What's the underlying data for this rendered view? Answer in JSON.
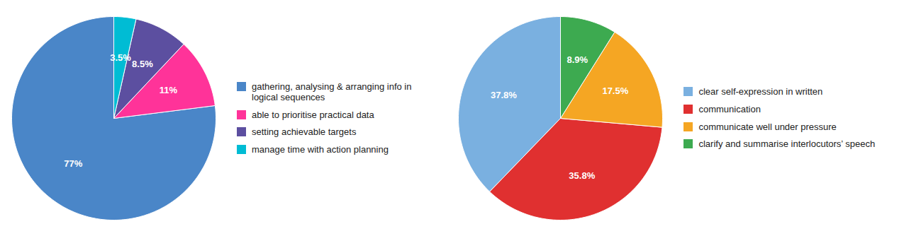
{
  "chart_data": [
    {
      "type": "pie",
      "categories": [
        "gathering, analysing & arranging info in\nlogical sequences",
        "able to prioritise practical data",
        "setting achievable targets",
        "manage time with action planning"
      ],
      "values": [
        77,
        11,
        8.5,
        3.5
      ],
      "value_labels": [
        "77%",
        "11%",
        "8.5%",
        "3.5%"
      ],
      "colors": [
        "#4A86C8",
        "#FF3399",
        "#5C4FA0",
        "#00BCD4"
      ],
      "data_labels": true,
      "legend": "right"
    },
    {
      "type": "pie",
      "categories": [
        "clear self-expression in written",
        "communication",
        "communicate well under pressure",
        "clarify and summarise interlocutors’ speech"
      ],
      "values": [
        37.8,
        35.8,
        17.5,
        8.9
      ],
      "value_labels": [
        "37.8%",
        "35.8%",
        "17.5%",
        "8.9%"
      ],
      "colors": [
        "#7AB0E0",
        "#E03030",
        "#F5A623",
        "#3DAA50"
      ],
      "data_labels": true,
      "legend": "right"
    }
  ]
}
